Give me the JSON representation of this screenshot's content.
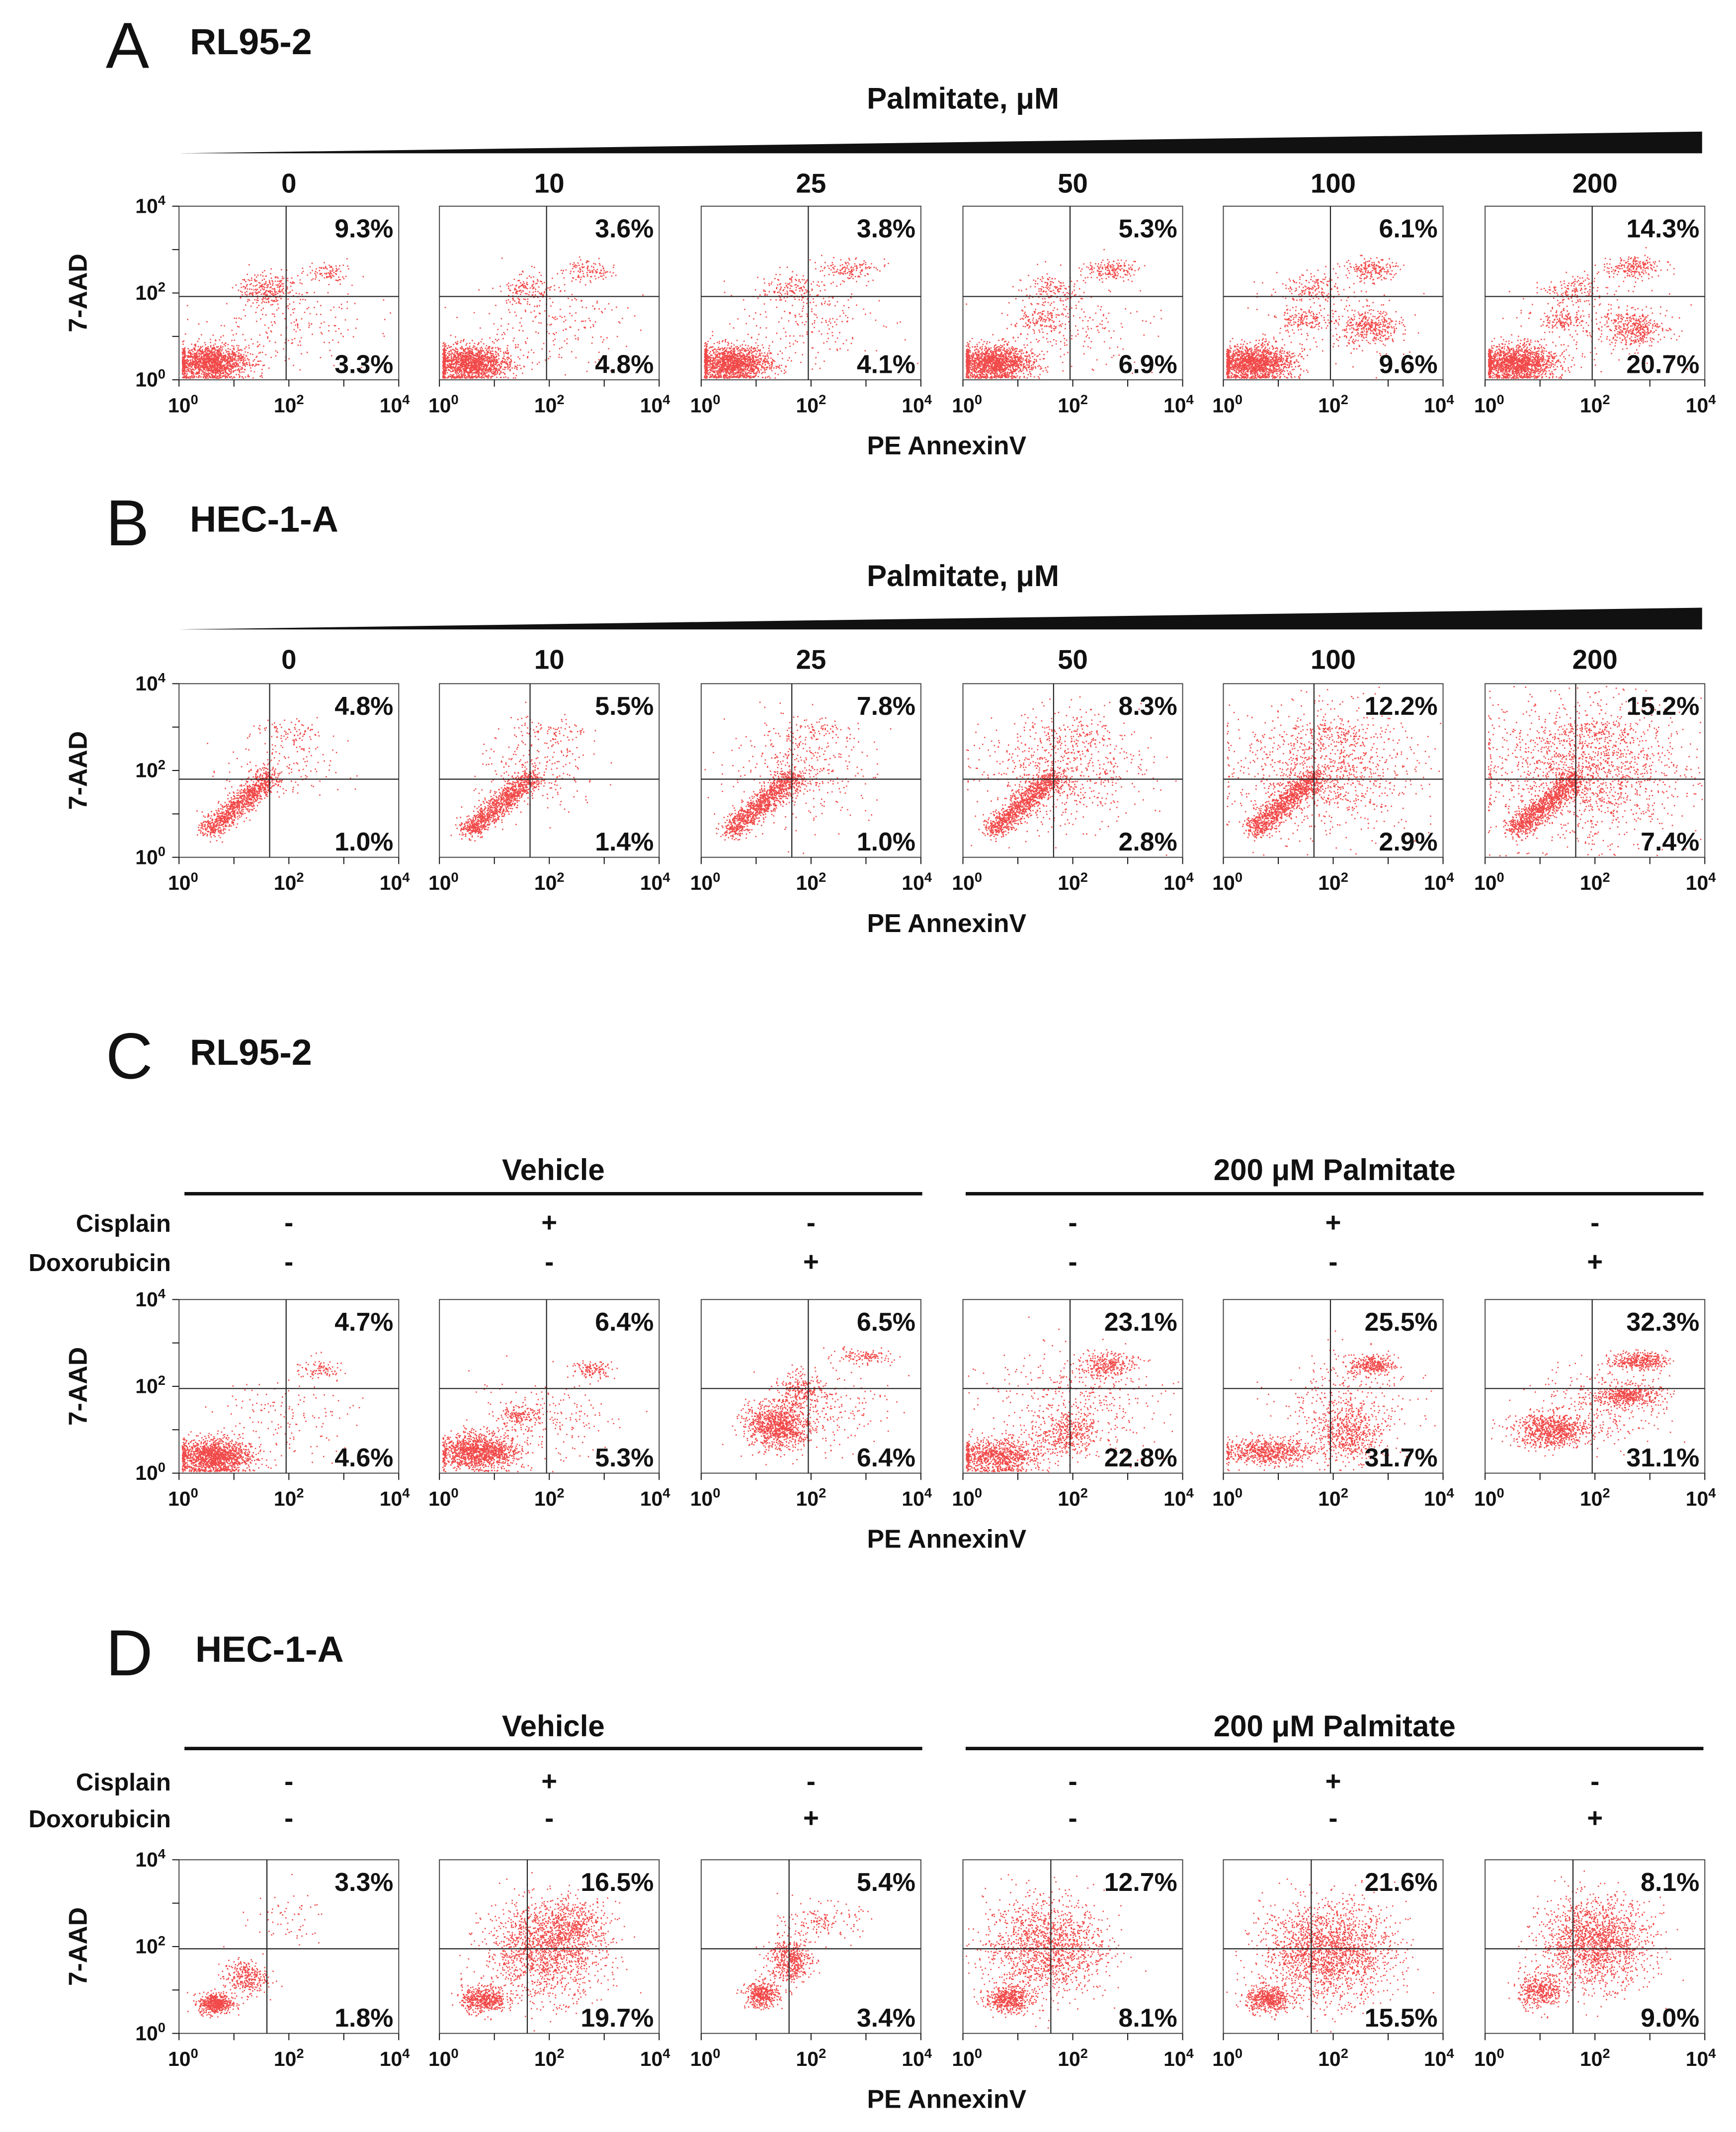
{
  "axes": {
    "x_label": "PE AnnexinV",
    "y_label": "7-AAD",
    "tick_base": "10",
    "tick_exps": [
      "0",
      "2",
      "4"
    ]
  },
  "colors": {
    "dots": "#ee1c1c",
    "ink": "#111111"
  },
  "chart_data": [
    {
      "type": "scatter",
      "panel": "A",
      "cell_line": "RL95-2",
      "header": "Palmitate, μM",
      "conditions": [
        "0",
        "10",
        "25",
        "50",
        "100",
        "200"
      ],
      "xlim": [
        0,
        4
      ],
      "ylim": [
        0,
        4
      ],
      "scale": "log10",
      "quadrant_gate": {
        "x": 1.95,
        "y": 1.92
      },
      "upper_right_pct": [
        "9.3%",
        "3.6%",
        "3.8%",
        "5.3%",
        "6.1%",
        "14.3%"
      ],
      "lower_right_pct": [
        "3.3%",
        "4.8%",
        "4.1%",
        "6.9%",
        "9.6%",
        "20.7%"
      ]
    },
    {
      "type": "scatter",
      "panel": "B",
      "cell_line": "HEC-1-A",
      "header": "Palmitate, μM",
      "conditions": [
        "0",
        "10",
        "25",
        "50",
        "100",
        "200"
      ],
      "xlim": [
        0,
        4
      ],
      "ylim": [
        0,
        4
      ],
      "scale": "log10",
      "quadrant_gate": {
        "x": 1.65,
        "y": 1.8
      },
      "upper_right_pct": [
        "4.8%",
        "5.5%",
        "7.8%",
        "8.3%",
        "12.2%",
        "15.2%"
      ],
      "lower_right_pct": [
        "1.0%",
        "1.4%",
        "1.0%",
        "2.8%",
        "2.9%",
        "7.4%"
      ]
    },
    {
      "type": "scatter",
      "panel": "C",
      "cell_line": "RL95-2",
      "groups": [
        "Vehicle",
        "200 μM Palmitate"
      ],
      "treatments": [
        {
          "name": "Cisplain",
          "values": [
            "-",
            "+",
            "-",
            "-",
            "+",
            "-"
          ]
        },
        {
          "name": "Doxorubicin",
          "values": [
            "-",
            "-",
            "+",
            "-",
            "-",
            "+"
          ]
        }
      ],
      "xlim": [
        0,
        4
      ],
      "ylim": [
        0,
        4
      ],
      "scale": "log10",
      "quadrant_gate": {
        "x": 1.95,
        "y": 1.95
      },
      "upper_right_pct": [
        "4.7%",
        "6.4%",
        "6.5%",
        "23.1%",
        "25.5%",
        "32.3%"
      ],
      "lower_right_pct": [
        "4.6%",
        "5.3%",
        "6.4%",
        "22.8%",
        "31.7%",
        "31.1%"
      ]
    },
    {
      "type": "scatter",
      "panel": "D",
      "cell_line": "HEC-1-A",
      "groups": [
        "Vehicle",
        "200 μM Palmitate"
      ],
      "treatments": [
        {
          "name": "Cisplain",
          "values": [
            "-",
            "+",
            "-",
            "-",
            "+",
            "-"
          ]
        },
        {
          "name": "Doxorubicin",
          "values": [
            "-",
            "-",
            "+",
            "-",
            "-",
            "+"
          ]
        }
      ],
      "xlim": [
        0,
        4
      ],
      "ylim": [
        0,
        4
      ],
      "scale": "log10",
      "quadrant_gate": {
        "x": 1.6,
        "y": 1.95
      },
      "upper_right_pct": [
        "3.3%",
        "16.5%",
        "5.4%",
        "12.7%",
        "21.6%",
        "8.1%"
      ],
      "lower_right_pct": [
        "1.8%",
        "19.7%",
        "3.4%",
        "8.1%",
        "15.5%",
        "9.0%"
      ]
    }
  ]
}
